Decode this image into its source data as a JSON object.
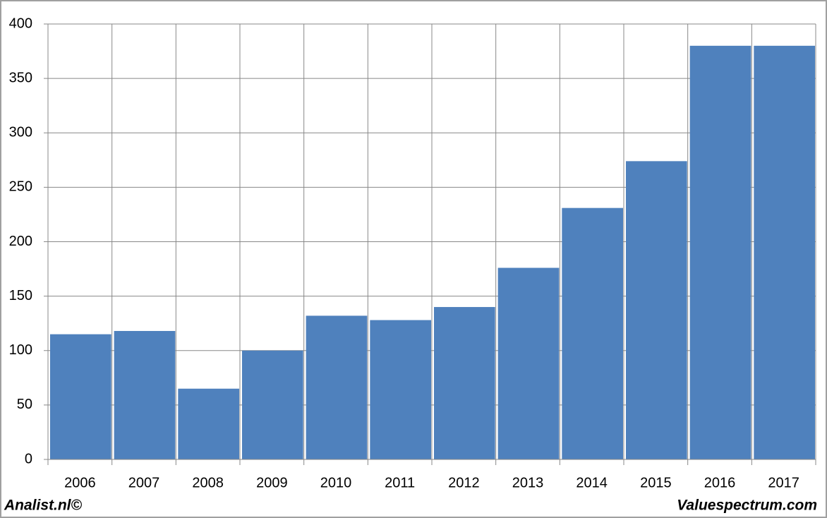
{
  "chart_data": {
    "type": "bar",
    "categories": [
      "2006",
      "2007",
      "2008",
      "2009",
      "2010",
      "2011",
      "2012",
      "2013",
      "2014",
      "2015",
      "2016",
      "2017"
    ],
    "values": [
      115,
      118,
      65,
      100,
      132,
      128,
      140,
      176,
      231,
      274,
      380,
      380
    ],
    "color": "#4f81bd",
    "ylim": [
      0,
      400
    ],
    "yticks": [
      0,
      50,
      100,
      150,
      200,
      250,
      300,
      350,
      400
    ],
    "grid": true
  },
  "footer": {
    "left": "Analist.nl©",
    "right": "Valuespectrum.com"
  }
}
